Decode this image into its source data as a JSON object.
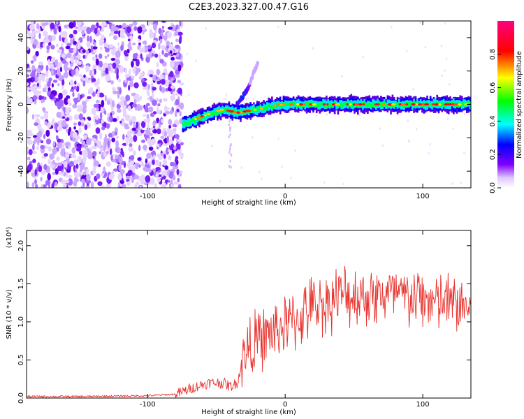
{
  "title": "C2E3.2023.327.00.47.G16",
  "chart_data": [
    {
      "type": "heatmap",
      "xlabel": "Height of straight line (km)",
      "ylabel": "Frequency (Hz)",
      "xlim": [
        -188,
        135
      ],
      "ylim": [
        -50,
        50
      ],
      "xticks": [
        -100,
        0,
        100
      ],
      "yticks": [
        -40,
        -20,
        0,
        20,
        40
      ],
      "colorbar": {
        "label": "Normalized spectral amplitude",
        "range": [
          0,
          1
        ],
        "ticks": [
          0.0,
          0.2,
          0.4,
          0.6,
          0.8
        ]
      },
      "noise_region": {
        "x_from": -188,
        "x_to": -75
      },
      "ridge": [
        {
          "x": -75,
          "y": -12
        },
        {
          "x": -60,
          "y": -7
        },
        {
          "x": -45,
          "y": -3
        },
        {
          "x": -35,
          "y": -5
        },
        {
          "x": -20,
          "y": -3
        },
        {
          "x": -10,
          "y": -1
        },
        {
          "x": 0,
          "y": 0
        },
        {
          "x": 40,
          "y": 0
        },
        {
          "x": 80,
          "y": 0
        },
        {
          "x": 130,
          "y": 0
        }
      ],
      "branch": [
        {
          "x": -35,
          "y": 0
        },
        {
          "x": -28,
          "y": 8
        },
        {
          "x": -20,
          "y": 25
        }
      ]
    },
    {
      "type": "line",
      "xlabel": "Height of straight line (km)",
      "ylabel": "SNR (10 * v/v)",
      "y_multiplier": "(x10⁴)",
      "xlim": [
        -188,
        135
      ],
      "ylim": [
        0,
        2.2
      ],
      "xticks": [
        -100,
        0,
        100
      ],
      "yticks": [
        0.0,
        0.5,
        1.0,
        1.5,
        2.0
      ],
      "series": [
        {
          "color": "#e8332e",
          "x": [
            -188,
            -150,
            -100,
            -80,
            -75,
            -65,
            -55,
            -45,
            -40,
            -35,
            -30,
            -25,
            -20,
            -10,
            0,
            10,
            20,
            30,
            40,
            50,
            60,
            70,
            80,
            90,
            100,
            110,
            120,
            130,
            135
          ],
          "y": [
            0.02,
            0.02,
            0.03,
            0.05,
            0.08,
            0.15,
            0.2,
            0.2,
            0.15,
            0.2,
            0.55,
            0.7,
            0.75,
            0.85,
            0.95,
            1.05,
            1.2,
            1.25,
            1.35,
            1.35,
            1.35,
            1.35,
            1.35,
            1.3,
            1.3,
            1.25,
            1.25,
            1.2,
            1.2
          ]
        }
      ]
    }
  ]
}
